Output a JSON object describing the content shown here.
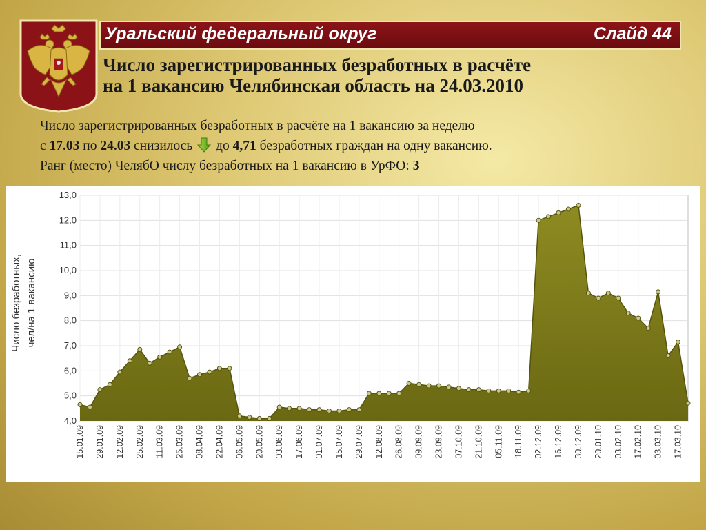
{
  "header": {
    "region": "Уральский федеральный округ",
    "slide": "Слайд 44"
  },
  "headline": {
    "line1": "Число зарегистрированных безработных в расчёте",
    "line2": "на 1 вакансию Челябинская область на 24.03.2010"
  },
  "info": {
    "line1": "Число зарегистрированных безработных в расчёте на 1 вакансию за неделю",
    "line2_prefix": "с ",
    "date_from": "17.03",
    "line2_mid": " по ",
    "date_to": "24.03",
    "line2_verb": " снизилось ",
    "line2_do": " до ",
    "value": "4,71",
    "line2_suffix": " безработных граждан на одну вакансию.",
    "line3_prefix": "Ранг (место) ЧелябО числу безработных на 1 вакансию в УрФО: ",
    "rank": "3",
    "arrow_icon": "arrow-down-icon",
    "arrow_color": "#7cbf2a"
  },
  "colors": {
    "banner": "#7a1014",
    "area_fill": "#7d7b1a",
    "line": "#55540f"
  },
  "chart_data": {
    "type": "area",
    "ylabel": "Число безработных, чел/на 1 вакансию",
    "ylim": [
      4.0,
      13.0
    ],
    "ytick_labels": [
      "4,0",
      "5,0",
      "6,0",
      "7,0",
      "8,0",
      "9,0",
      "10,0",
      "11,0",
      "12,0",
      "13,0"
    ],
    "grid": true,
    "tick_labels": [
      "15.01.09",
      "29.01.09",
      "12.02.09",
      "25.02.09",
      "11.03.09",
      "25.03.09",
      "08.04.09",
      "22.04.09",
      "06.05.09",
      "20.05.09",
      "03.06.09",
      "17.06.09",
      "01.07.09",
      "15.07.09",
      "29.07.09",
      "12.08.09",
      "26.08.09",
      "09.09.09",
      "23.09.09",
      "07.10.09",
      "21.10.09",
      "05.11.09",
      "18.11.09",
      "02.12.09",
      "16.12.09",
      "30.12.09",
      "20.01.10",
      "03.02.10",
      "17.02.10",
      "03.03.10",
      "17.03.10"
    ],
    "values": [
      4.65,
      4.55,
      5.25,
      5.45,
      5.95,
      6.4,
      6.85,
      6.3,
      6.55,
      6.75,
      6.95,
      5.7,
      5.85,
      5.95,
      6.1,
      6.1,
      4.2,
      4.15,
      4.1,
      4.1,
      4.55,
      4.5,
      4.5,
      4.45,
      4.45,
      4.4,
      4.4,
      4.45,
      4.45,
      5.1,
      5.1,
      5.1,
      5.1,
      5.5,
      5.45,
      5.4,
      5.4,
      5.35,
      5.3,
      5.25,
      5.25,
      5.2,
      5.2,
      5.2,
      5.15,
      5.2,
      12.0,
      12.15,
      12.3,
      12.45,
      12.6,
      9.1,
      8.9,
      9.1,
      8.9,
      8.3,
      8.1,
      7.7,
      9.15,
      6.6,
      7.15,
      4.71
    ]
  }
}
